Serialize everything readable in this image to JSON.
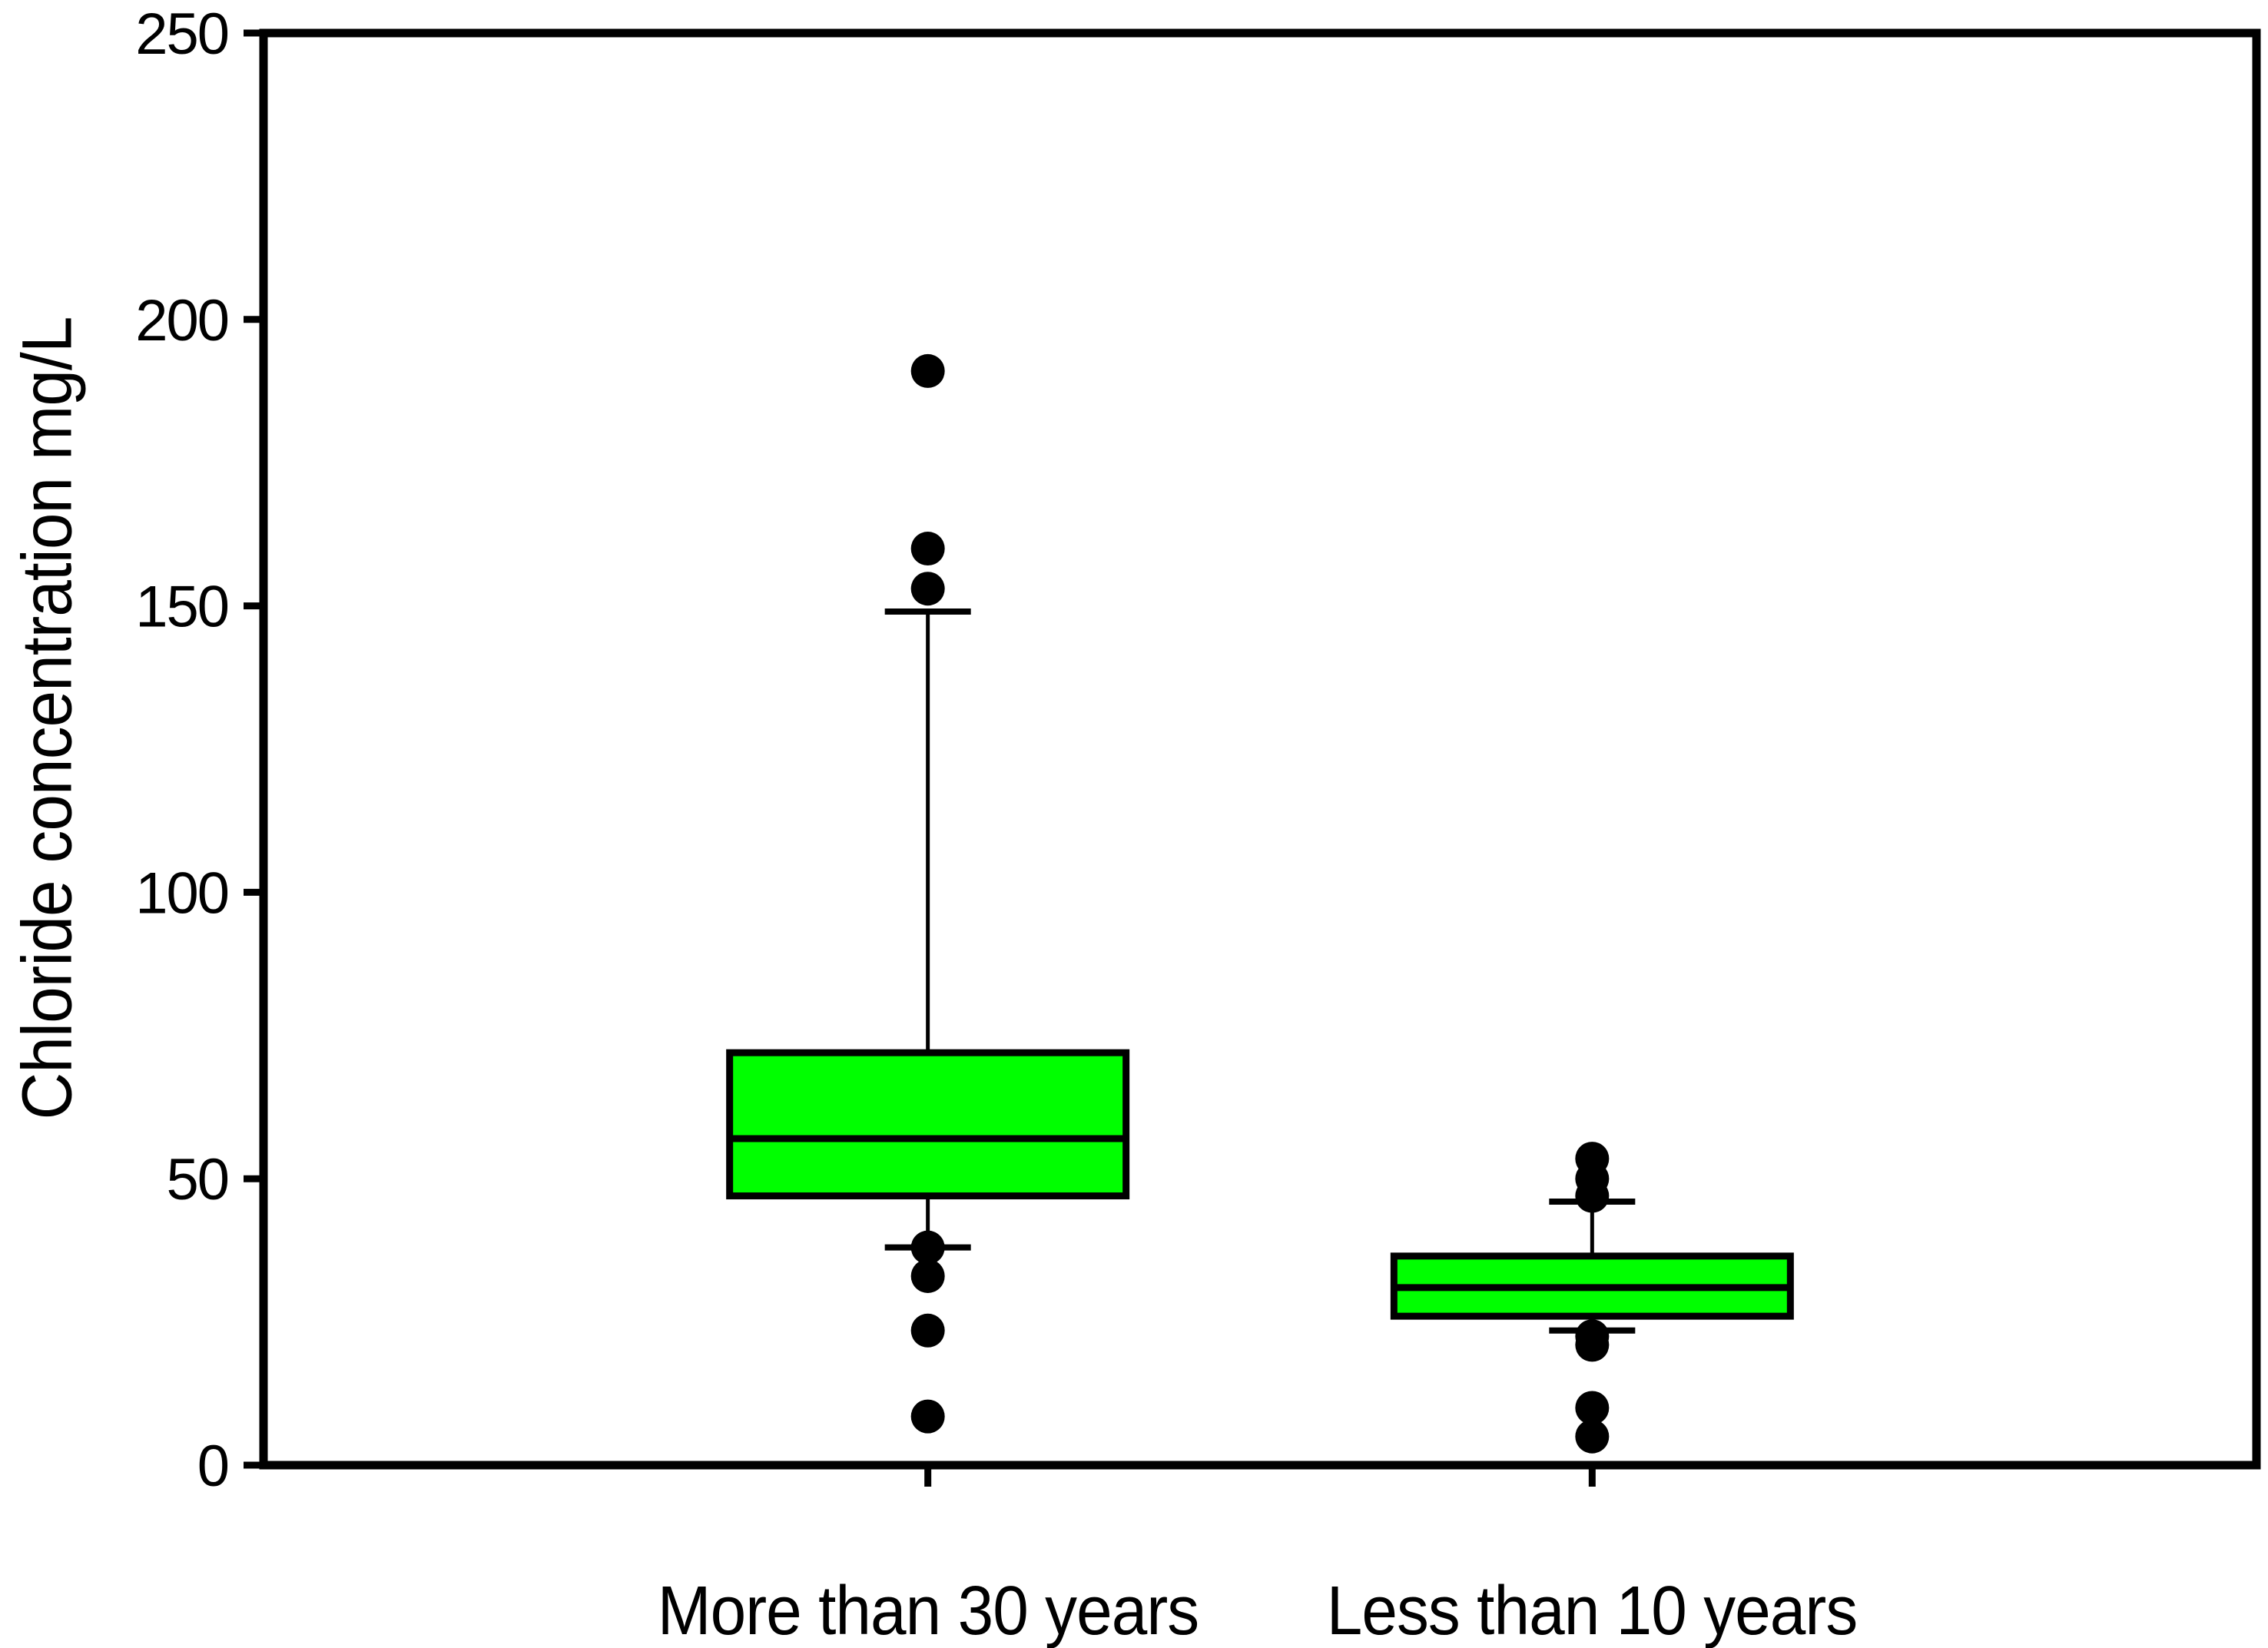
{
  "chart_data": {
    "type": "boxplot",
    "title": "",
    "xlabel": "",
    "ylabel": "Chloride concentration mg/L",
    "ylim": [
      0,
      250
    ],
    "yticks": [
      0,
      50,
      100,
      150,
      200,
      250
    ],
    "grid": false,
    "legend": null,
    "categories": [
      "More than 30 years",
      "Less than 10 years"
    ],
    "series": [
      {
        "name": "More than 30 years",
        "q1": 47,
        "median": 57,
        "q3": 72,
        "whisker_low": 38,
        "whisker_high": 149,
        "outliers_high": [
          191,
          160,
          153
        ],
        "outliers_low": [
          38,
          33,
          23.5,
          8.5
        ]
      },
      {
        "name": "Less than 10 years",
        "q1": 26,
        "median": 31,
        "q3": 36.5,
        "whisker_low": 23.5,
        "whisker_high": 46,
        "outliers_high": [
          53.5,
          50,
          47
        ],
        "outliers_low": [
          22.5,
          21,
          10,
          5
        ]
      }
    ],
    "colors": {
      "box_fill": "#00FF00",
      "line": "#000000",
      "background": "#FFFFFF"
    }
  }
}
